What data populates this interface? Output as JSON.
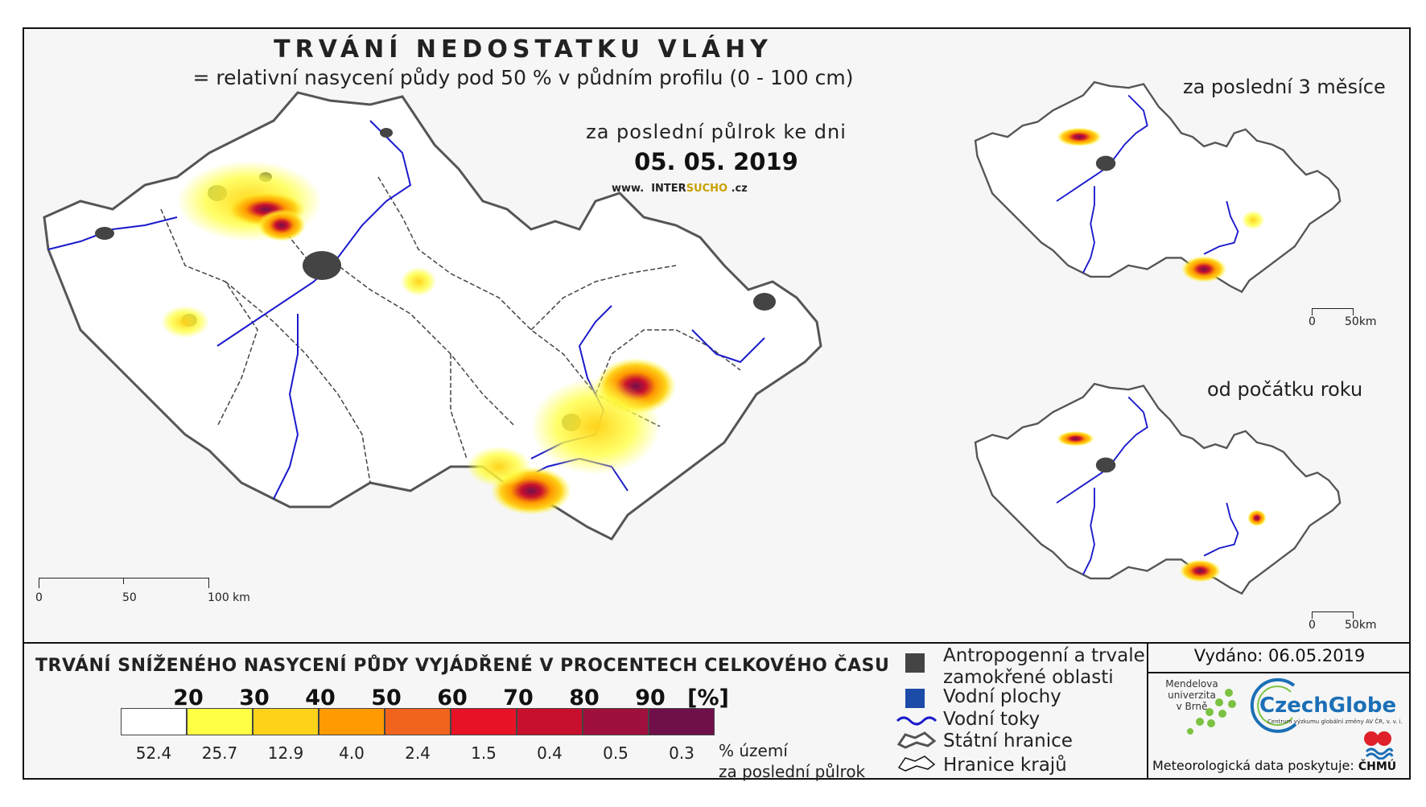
{
  "header": {
    "title": "TRVÁNÍ NEDOSTATKU VLÁHY",
    "subtitle": "= relativní nasycení půdy pod 50 % v půdním profilu (0 - 100 cm)",
    "period": "za poslední půlrok ke dni",
    "date": "05. 05. 2019",
    "website_prefix": "www.",
    "website_inter": "INTER",
    "website_sucho": "SUCHO",
    "website_suffix": ".cz"
  },
  "main_map": {
    "scalebar": {
      "zero": "0",
      "mid": "50",
      "end": "100 km"
    }
  },
  "mini_maps": [
    {
      "title": "za poslední 3 měsíce",
      "scale_zero": "0",
      "scale_end": "50km"
    },
    {
      "title": "od počátku roku",
      "scale_zero": "0",
      "scale_end": "50km"
    }
  ],
  "legend": {
    "title": "TRVÁNÍ SNÍŽENÉHO NASYCENÍ PŮDY VYJÁDŘENÉ V PROCENTECH CELKOVÉHO ČASU",
    "thresholds": [
      "20",
      "30",
      "40",
      "50",
      "60",
      "70",
      "80",
      "90",
      "[%]"
    ],
    "classes": [
      {
        "color": "#ffffff",
        "percent": "52.4"
      },
      {
        "color": "#ffff44",
        "percent": "25.7"
      },
      {
        "color": "#ffd21a",
        "percent": "12.9"
      },
      {
        "color": "#ff9a00",
        "percent": "4.0"
      },
      {
        "color": "#f0641e",
        "percent": "2.4"
      },
      {
        "color": "#e81227",
        "percent": "1.5"
      },
      {
        "color": "#c8102e",
        "percent": "0.4"
      },
      {
        "color": "#a0103c",
        "percent": "0.5"
      },
      {
        "color": "#70104a",
        "percent": "0.3"
      }
    ],
    "percent_unit_line1": "% území",
    "percent_unit_line2": "za poslední půlrok"
  },
  "map_legend": {
    "anthropogenic_line1": "Antropogenní a trvale",
    "anthropogenic_line2": "zamokřené oblasti",
    "water_bodies": "Vodní plochy",
    "rivers": "Vodní toky",
    "state_border": "Státní hranice",
    "region_border": "Hranice krajů",
    "colors": {
      "anthropogenic": "#444444",
      "water": "#1c4ba8",
      "river": "#1a1acc"
    }
  },
  "footer": {
    "issued": "Vydáno: 06.05.2019",
    "mendel_line1": "Mendelova",
    "mendel_line2": "univerzita",
    "mendel_line3": "v Brně",
    "czechglobe": "CzechGlobe",
    "czechglobe_sub": "Centrum výzkumu globální změny AV ČR, v. v. i.",
    "meteo": "Meteorologická data poskytuje:",
    "chmu": "ČHMÚ"
  }
}
